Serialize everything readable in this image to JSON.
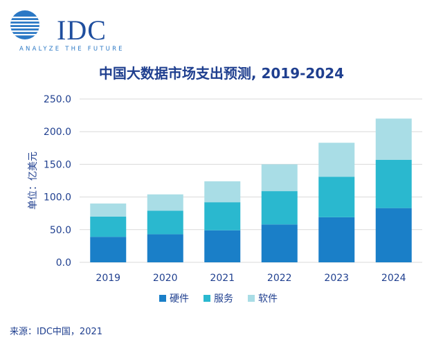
{
  "logo": {
    "text": "IDC",
    "tagline": "ANALYZE THE FUTURE",
    "color": "#1f4e9e"
  },
  "header": {
    "title": "中国大数据市场支出预测, 2019-2024"
  },
  "footer": {
    "source": "来源：IDC中国，2021"
  },
  "chart_data": {
    "type": "bar",
    "stacked": true,
    "title": "中国大数据市场支出预测, 2019-2024",
    "ylabel": "单位：亿美元",
    "xlabel": "",
    "categories": [
      "2019",
      "2020",
      "2021",
      "2022",
      "2023",
      "2024"
    ],
    "yticks": [
      "0.0",
      "50.0",
      "100.0",
      "150.0",
      "200.0",
      "250.0"
    ],
    "ylim": [
      0,
      250
    ],
    "grid": true,
    "legend_position": "bottom",
    "series": [
      {
        "name": "硬件",
        "color": "#1a7fc8",
        "values": [
          39,
          43,
          49,
          58,
          69,
          83
        ]
      },
      {
        "name": "服务",
        "color": "#2ab8cf",
        "values": [
          31,
          36,
          43,
          51,
          62,
          74
        ]
      },
      {
        "name": "软件",
        "color": "#a9dde6",
        "values": [
          20,
          25,
          32,
          41,
          52,
          63
        ]
      }
    ]
  }
}
